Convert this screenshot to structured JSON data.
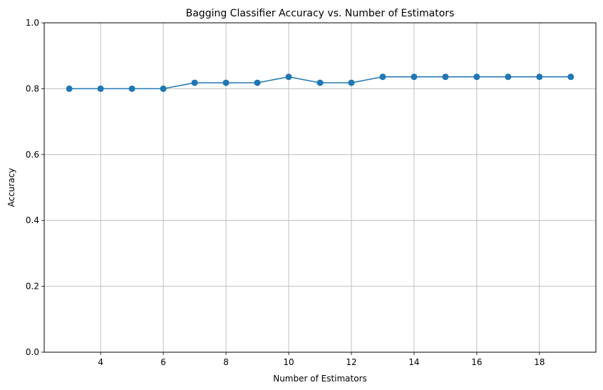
{
  "chart_data": {
    "type": "line",
    "title": "Bagging Classifier Accuracy vs. Number of Estimators",
    "xlabel": "Number of Estimators",
    "ylabel": "Accuracy",
    "xlim": [
      2.2,
      19.8
    ],
    "ylim": [
      0.0,
      1.0
    ],
    "xticks": [
      4,
      6,
      8,
      10,
      12,
      14,
      16,
      18
    ],
    "yticks": [
      0.0,
      0.2,
      0.4,
      0.6,
      0.8,
      1.0
    ],
    "grid": true,
    "marker": "circle",
    "color": "#1f77b4",
    "series": [
      {
        "x": [
          3,
          4,
          5,
          6,
          7,
          8,
          9,
          10,
          11,
          12,
          13,
          14,
          15,
          16,
          17,
          18,
          19
        ],
        "values": [
          0.8,
          0.8,
          0.8,
          0.8,
          0.818,
          0.818,
          0.818,
          0.836,
          0.818,
          0.818,
          0.836,
          0.836,
          0.836,
          0.836,
          0.836,
          0.836,
          0.836
        ]
      }
    ]
  }
}
